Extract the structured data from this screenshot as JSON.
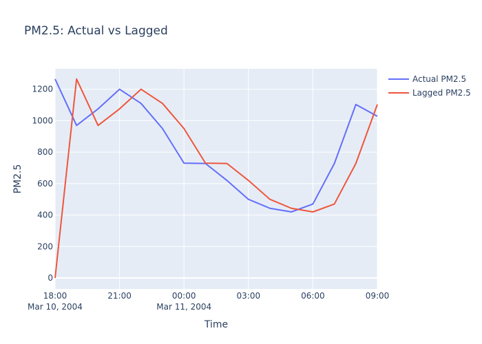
{
  "chart_data": {
    "type": "line",
    "title": "PM2.5: Actual vs Lagged",
    "xlabel": "Time",
    "ylabel": "PM2.5",
    "x": [
      "2004-03-10 18:00",
      "2004-03-10 19:00",
      "2004-03-10 20:00",
      "2004-03-10 21:00",
      "2004-03-10 22:00",
      "2004-03-10 23:00",
      "2004-03-11 00:00",
      "2004-03-11 01:00",
      "2004-03-11 02:00",
      "2004-03-11 03:00",
      "2004-03-11 04:00",
      "2004-03-11 05:00",
      "2004-03-11 06:00",
      "2004-03-11 07:00",
      "2004-03-11 08:00",
      "2004-03-11 09:00"
    ],
    "xlim": [
      "2004-03-10 18:00",
      "2004-03-11 09:00"
    ],
    "ylim": [
      -70,
      1330
    ],
    "yticks": [
      0,
      200,
      400,
      600,
      800,
      1000,
      1200
    ],
    "xticks": [
      {
        "value": "2004-03-10 18:00",
        "label": "18:00",
        "sublabel": "Mar 10, 2004"
      },
      {
        "value": "2004-03-10 21:00",
        "label": "21:00",
        "sublabel": ""
      },
      {
        "value": "2004-03-11 00:00",
        "label": "00:00",
        "sublabel": "Mar 11, 2004"
      },
      {
        "value": "2004-03-11 03:00",
        "label": "03:00",
        "sublabel": ""
      },
      {
        "value": "2004-03-11 06:00",
        "label": "06:00",
        "sublabel": ""
      },
      {
        "value": "2004-03-11 09:00",
        "label": "09:00",
        "sublabel": ""
      }
    ],
    "grid": true,
    "legend_position": "top-right",
    "series": [
      {
        "name": "Actual PM2.5",
        "color": "#636efa",
        "values": [
          1265,
          970,
          1075,
          1200,
          1110,
          950,
          730,
          728,
          620,
          500,
          443,
          420,
          470,
          728,
          1103,
          1028
        ]
      },
      {
        "name": "Lagged PM2.5",
        "color": "#ef553b",
        "values": [
          0,
          1265,
          970,
          1075,
          1200,
          1110,
          950,
          730,
          728,
          620,
          500,
          443,
          420,
          470,
          728,
          1103
        ]
      }
    ],
    "colors": {
      "plot_background": "#e5ecf6",
      "grid": "#ffffff",
      "text": "#2a3f5f"
    }
  }
}
